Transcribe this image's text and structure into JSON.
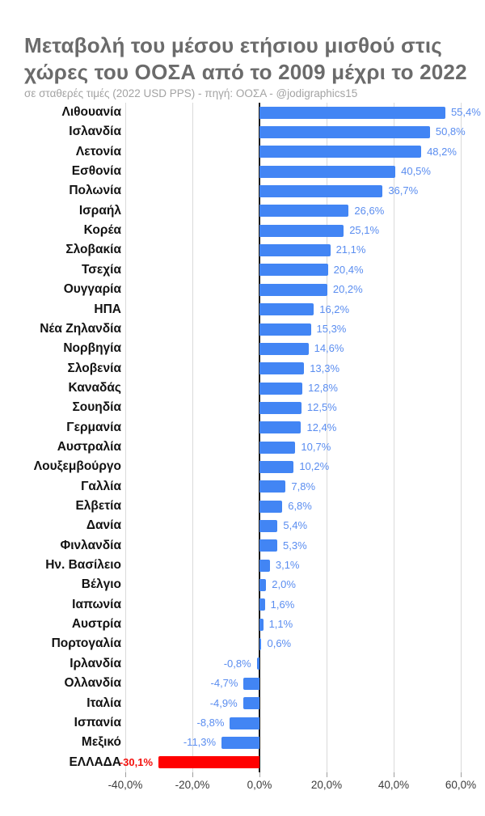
{
  "header": {
    "title": "Μεταβολή του μέσου ετήσιου μισθού στις χώρες του ΟΟΣΑ από το 2009 μέχρι το 2022",
    "subtitle": "σε σταθερές τιμές (2022 USD PPS) - πηγή: ΟΟΣΑ - @jodigraphics15"
  },
  "chart_data": {
    "type": "bar",
    "orientation": "horizontal",
    "title": "Μεταβολή του μέσου ετήσιου μισθού στις χώρες του ΟΟΣΑ από το 2009 μέχρι το 2022",
    "subtitle": "σε σταθερές τιμές (2022 USD PPS) - πηγή: ΟΟΣΑ - @jodigraphics15",
    "xlabel": "",
    "ylabel": "",
    "legend": "none",
    "grid": true,
    "xlim": [
      -40,
      64.3
    ],
    "categories": [
      "Λιθουανία",
      "Ισλανδία",
      "Λετονία",
      "Εσθονία",
      "Πολωνία",
      "Ισραήλ",
      "Κορέα",
      "Σλοβακία",
      "Τσεχία",
      "Ουγγαρία",
      "ΗΠΑ",
      "Νέα Ζηλανδία",
      "Νορβηγία",
      "Σλοβενία",
      "Καναδάς",
      "Σουηδία",
      "Γερμανία",
      "Αυστραλία",
      "Λουξεμβούργο",
      "Γαλλία",
      "Ελβετία",
      "Δανία",
      "Φινλανδία",
      "Ην. Βασίλειο",
      "Βέλγιο",
      "Ιαπωνία",
      "Αυστρία",
      "Πορτογαλία",
      "Ιρλανδία",
      "Ολλανδία",
      "Ιταλία",
      "Ισπανία",
      "Μεξικό",
      "ΕΛΛΑΔΑ"
    ],
    "values": [
      55.4,
      50.8,
      48.2,
      40.5,
      36.7,
      26.6,
      25.1,
      21.1,
      20.4,
      20.2,
      16.2,
      15.3,
      14.6,
      13.3,
      12.8,
      12.5,
      12.4,
      10.7,
      10.2,
      7.8,
      6.8,
      5.4,
      5.3,
      3.1,
      2.0,
      1.6,
      1.1,
      0.6,
      -0.8,
      -4.7,
      -4.9,
      -8.8,
      -11.3,
      -30.1
    ],
    "value_labels": [
      "55,4%",
      "50,8%",
      "48,2%",
      "40,5%",
      "36,7%",
      "26,6%",
      "25,1%",
      "21,1%",
      "20,4%",
      "20,2%",
      "16,2%",
      "15,3%",
      "14,6%",
      "13,3%",
      "12,8%",
      "12,5%",
      "12,4%",
      "10,7%",
      "10,2%",
      "7,8%",
      "6,8%",
      "5,4%",
      "5,3%",
      "3,1%",
      "2,0%",
      "1,6%",
      "1,1%",
      "0,6%",
      "-0,8%",
      "-4,7%",
      "-4,9%",
      "-8,8%",
      "-11,3%",
      "-30,1%"
    ],
    "x_ticks": [
      {
        "value": -40,
        "label": "-40,0%"
      },
      {
        "value": -20,
        "label": "-20,0%"
      },
      {
        "value": 0,
        "label": "0,0%"
      },
      {
        "value": 20,
        "label": "20,0%"
      },
      {
        "value": 40,
        "label": "40,0%"
      },
      {
        "value": 60,
        "label": "60,0%"
      }
    ],
    "highlight_category": "ΕΛΛΑΔΑ",
    "colors": {
      "bar": "#4285f4",
      "highlight_bar": "#ff0000",
      "annotation": "#5a8df0",
      "highlight_annotation": "#f4100c",
      "gridline": "#dadada",
      "zero_axis": "#1a1a1a",
      "axis_label": "#3c3c3c"
    }
  }
}
